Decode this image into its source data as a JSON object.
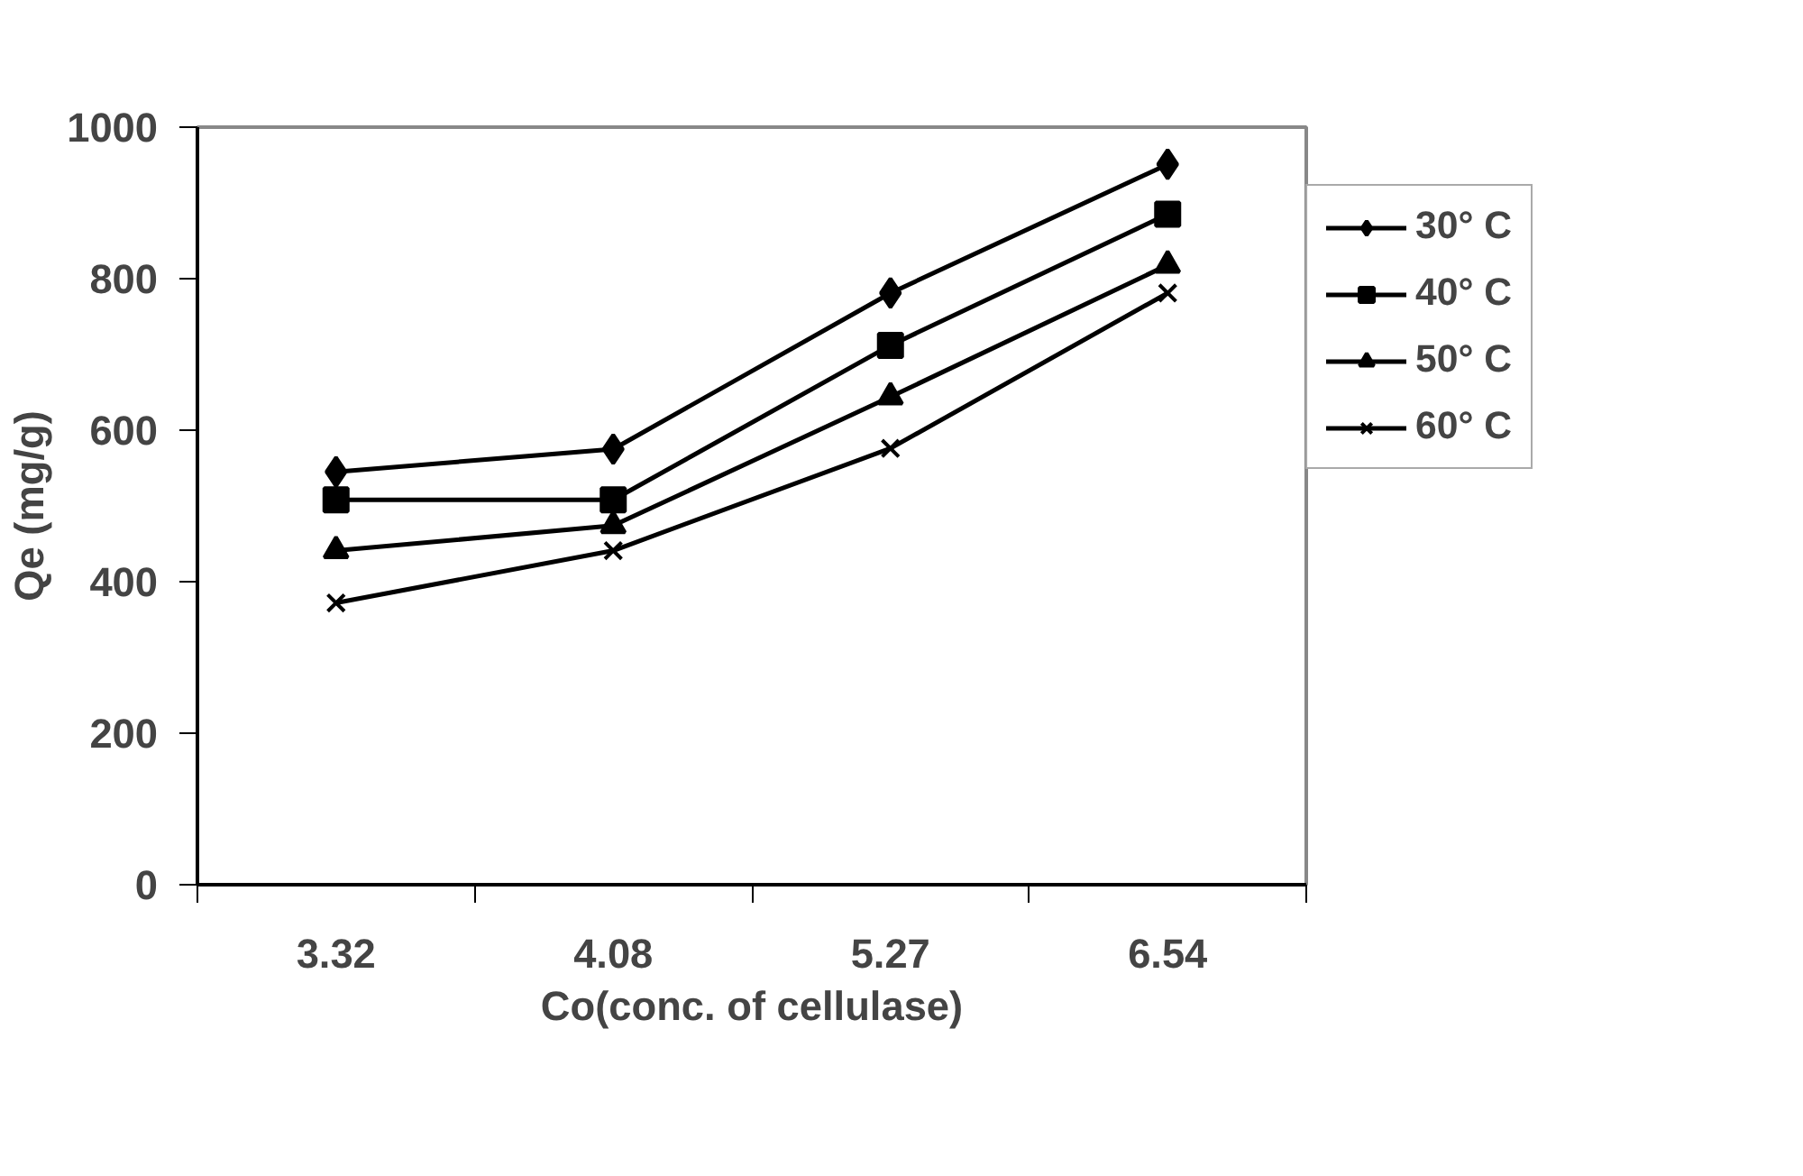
{
  "chart_data": {
    "type": "line",
    "xlabel": "Co(conc. of cellulase)",
    "ylabel": "Qe (mg/g)",
    "categories": [
      "3.32",
      "4.08",
      "5.27",
      "6.54"
    ],
    "ylim": [
      0,
      1000
    ],
    "yticks": [
      0,
      200,
      400,
      600,
      800,
      1000
    ],
    "grid": false,
    "legend": "right",
    "line_style": "solid",
    "series": [
      {
        "name": "30° C",
        "color": "#000000",
        "marker": "diamond",
        "values": [
          545,
          575,
          781,
          951
        ]
      },
      {
        "name": "40° C",
        "color": "#000000",
        "marker": "square",
        "values": [
          508,
          508,
          712,
          885
        ]
      },
      {
        "name": "50° C",
        "color": "#000000",
        "marker": "triangle",
        "values": [
          441,
          474,
          644,
          818
        ]
      },
      {
        "name": "60° C",
        "color": "#000000",
        "marker": "cross",
        "values": [
          372,
          441,
          576,
          781
        ]
      }
    ]
  }
}
